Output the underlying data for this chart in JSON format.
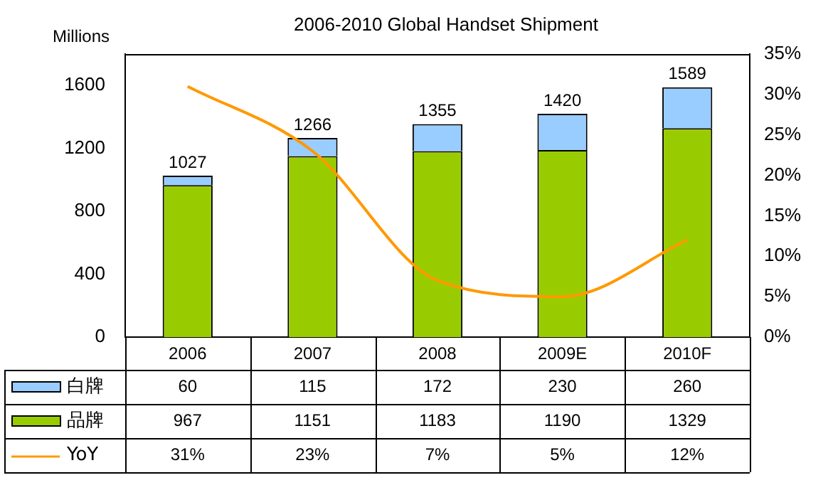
{
  "chart_data": {
    "type": "bar",
    "title": "2006-2010 Global Handset Shipment",
    "ylabel": "Millions",
    "categories": [
      "2006",
      "2007",
      "2008",
      "2009E",
      "2010F"
    ],
    "series": [
      {
        "name": "品牌",
        "color": "#99cc00",
        "values": [
          967,
          1151,
          1183,
          1190,
          1329
        ],
        "value_labels": [
          "967",
          "1151",
          "1183",
          "1190",
          "1329"
        ]
      },
      {
        "name": "白牌",
        "color": "#99ccff",
        "values": [
          60,
          115,
          172,
          230,
          260
        ],
        "value_labels": [
          "60",
          "115",
          "172",
          "230",
          "260"
        ]
      },
      {
        "name": "YoY",
        "type": "line",
        "axis": "y2",
        "color": "#ff9900",
        "values": [
          31,
          23,
          7,
          5,
          12
        ],
        "value_labels": [
          "31%",
          "23%",
          "7%",
          "5%",
          "12%"
        ]
      }
    ],
    "stacked": true,
    "totals": [
      "1027",
      "1266",
      "1355",
      "1420",
      "1589"
    ],
    "ylim": [
      0,
      1800
    ],
    "yticks": [
      0,
      400,
      800,
      1200,
      1600
    ],
    "y2lim": [
      0,
      35
    ],
    "y2ticks": [
      {
        "value": 0,
        "label": "0%"
      },
      {
        "value": 5,
        "label": "5%"
      },
      {
        "value": 10,
        "label": "10%"
      },
      {
        "value": 15,
        "label": "15%"
      },
      {
        "value": 20,
        "label": "20%"
      },
      {
        "value": 25,
        "label": "25%"
      },
      {
        "value": 30,
        "label": "30%"
      },
      {
        "value": 35,
        "label": "35%"
      }
    ],
    "legend": "bottom",
    "marker": "none",
    "line_style": "solid"
  }
}
